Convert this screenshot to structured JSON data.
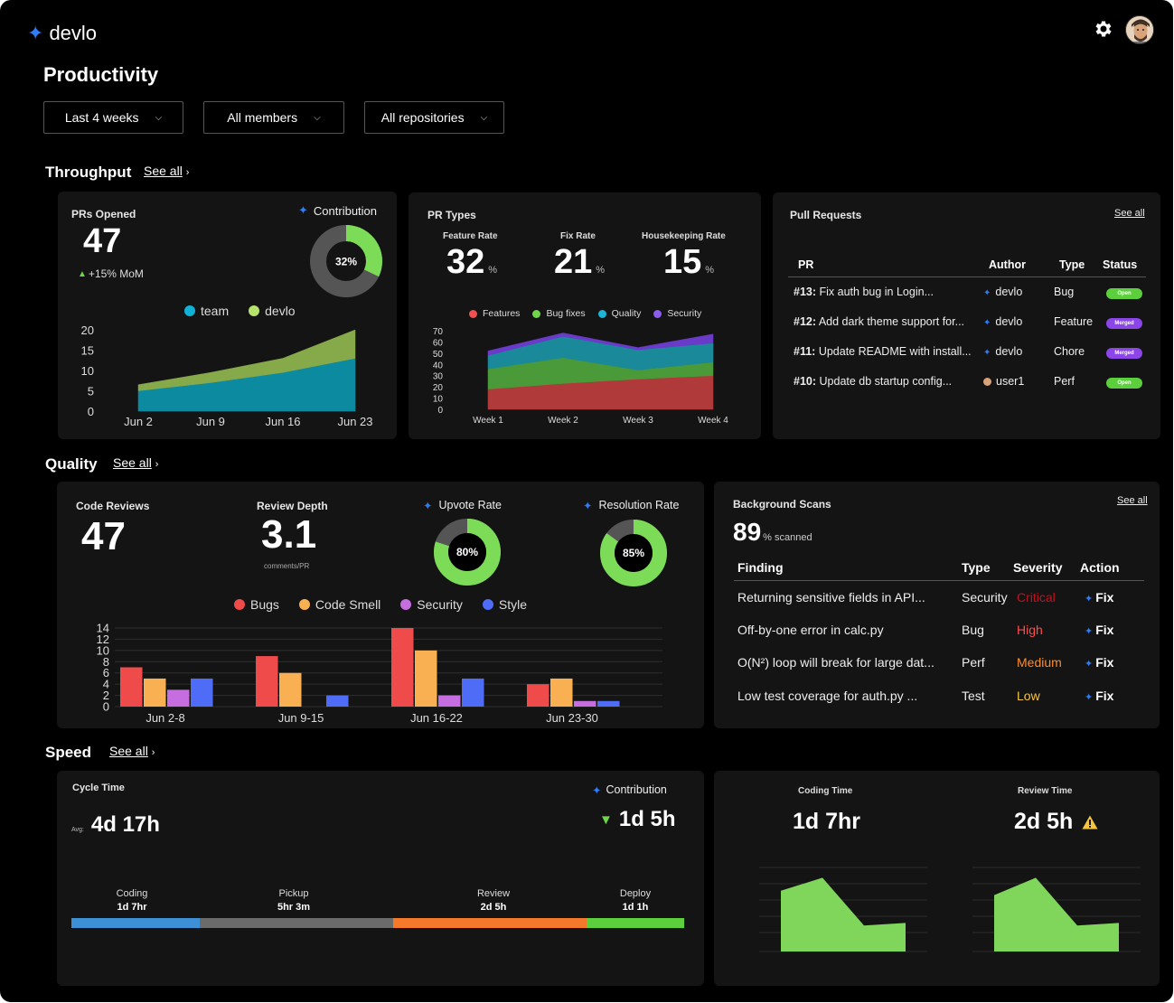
{
  "brand": {
    "name": "devlo",
    "colors": {
      "accent": "#2f7cf6",
      "bg": "#000000",
      "card": "#141414"
    }
  },
  "page_title": "Productivity",
  "filters": [
    {
      "label": "Last 4 weeks"
    },
    {
      "label": "All members"
    },
    {
      "label": "All repositories"
    }
  ],
  "sections": {
    "throughput": {
      "title": "Throughput",
      "see_all": "See all"
    },
    "quality": {
      "title": "Quality",
      "see_all": "See all"
    },
    "speed": {
      "title": "Speed",
      "see_all": "See all"
    }
  },
  "prs_opened": {
    "label": "PRs Opened",
    "value": "47",
    "trend": "+15% MoM",
    "contribution_label": "Contribution",
    "contribution_pct": "32%",
    "contribution_value": 32
  },
  "pr_types": {
    "label": "PR Types",
    "stats": [
      {
        "label": "Feature Rate",
        "value": "32",
        "unit": "%"
      },
      {
        "label": "Fix Rate",
        "value": "21",
        "unit": "%"
      },
      {
        "label": "Housekeeping Rate",
        "value": "15",
        "unit": "%"
      }
    ]
  },
  "pull_requests": {
    "label": "Pull Requests",
    "see_all": "See all",
    "columns": [
      "PR",
      "Author",
      "Type",
      "Status"
    ],
    "rows": [
      {
        "id": "#13:",
        "title": "Fix auth bug in Login...",
        "author": "devlo",
        "type": "Bug",
        "status": "Open",
        "status_color": "#5ccf3c"
      },
      {
        "id": "#12:",
        "title": "Add dark theme support for...",
        "author": "devlo",
        "type": "Feature",
        "status": "Merged",
        "status_color": "#8b45e8"
      },
      {
        "id": "#11:",
        "title": "Update README with install...",
        "author": "devlo",
        "type": "Chore",
        "status": "Merged",
        "status_color": "#8b45e8"
      },
      {
        "id": "#10:",
        "title": "Update db startup config...",
        "author": "user1",
        "type": "Perf",
        "status": "Open",
        "status_color": "#5ccf3c"
      }
    ]
  },
  "quality_metrics": {
    "code_reviews_label": "Code Reviews",
    "code_reviews_value": "47",
    "review_depth_label": "Review Depth",
    "review_depth_value": "3.1",
    "review_depth_unit": "comments/PR",
    "upvote_label": "Upvote Rate",
    "upvote_pct": "80%",
    "upvote_value": 80,
    "resolution_label": "Resolution Rate",
    "resolution_pct": "85%",
    "resolution_value": 85
  },
  "background_scans": {
    "label": "Background Scans",
    "see_all": "See all",
    "scanned_value": "89",
    "scanned_suffix": "% scanned",
    "columns": [
      "Finding",
      "Type",
      "Severity",
      "Action"
    ],
    "rows": [
      {
        "finding": "Returning sensitive fields in API...",
        "type": "Security",
        "severity": "Critical",
        "severity_color": "#c1121f",
        "action": "Fix"
      },
      {
        "finding": "Off-by-one error in calc.py",
        "type": "Bug",
        "severity": "High",
        "severity_color": "#ff4d4d",
        "action": "Fix"
      },
      {
        "finding": "O(N²) loop will break for large dat...",
        "type": "Perf",
        "severity": "Medium",
        "severity_color": "#ff8c2a",
        "action": "Fix"
      },
      {
        "finding": "Low test coverage for auth.py ...",
        "type": "Test",
        "severity": "Low",
        "severity_color": "#f5c542",
        "action": "Fix"
      }
    ]
  },
  "cycle_time": {
    "label": "Cycle Time",
    "avg_label": "Avg:",
    "avg_value": "4d 17h",
    "contribution_label": "Contribution",
    "contribution_value": "1d 5h",
    "stages": [
      {
        "name": "Coding",
        "value": "1d 7hr",
        "color": "#3d8fd6",
        "share": 21
      },
      {
        "name": "Pickup",
        "value": "5hr 3m",
        "color": "#6b6b6b",
        "share": 31.5
      },
      {
        "name": "Review",
        "value": "2d 5h",
        "color": "#f5792a",
        "share": 31.5
      },
      {
        "name": "Deploy",
        "value": "1d 1h",
        "color": "#5ccf3c",
        "share": 16
      }
    ]
  },
  "coding_time": {
    "label": "Coding Time",
    "value": "1d 7hr"
  },
  "review_time": {
    "label": "Review Time",
    "value": "2d 5h",
    "warning_icon": "warning-icon"
  },
  "chart_data": [
    {
      "id": "prs_opened",
      "type": "area",
      "stacked": true,
      "categories": [
        "Jun 2",
        "Jun 9",
        "Jun 16",
        "Jun 23"
      ],
      "series": [
        {
          "name": "team",
          "color": "#0b8aa0",
          "values": [
            5,
            7,
            9.5,
            13
          ]
        },
        {
          "name": "devlo",
          "color": "#86a94a",
          "values": [
            1.5,
            2.5,
            3.5,
            7
          ]
        }
      ],
      "yticks": [
        0,
        5,
        10,
        15,
        20
      ],
      "ylim": [
        0,
        20
      ],
      "legend_dot_colors": [
        "#0fb2d6",
        "#b6e36a"
      ]
    },
    {
      "id": "pr_types",
      "type": "area",
      "stacked": true,
      "categories": [
        "Week 1",
        "Week 2",
        "Week 3",
        "Week 4"
      ],
      "series": [
        {
          "name": "Features",
          "color": "#b03a3a",
          "legend_color": "#f05050",
          "values": [
            18,
            23,
            27,
            30
          ]
        },
        {
          "name": "Bug fixes",
          "color": "#4a9a3a",
          "legend_color": "#6fd64a",
          "values": [
            18,
            23,
            8,
            12
          ]
        },
        {
          "name": "Quality",
          "color": "#1a8a9a",
          "legend_color": "#1cb5d6",
          "values": [
            12,
            19,
            18,
            17
          ]
        },
        {
          "name": "Security",
          "color": "#6a3ac8",
          "legend_color": "#8a5cf0",
          "values": [
            4,
            3,
            2,
            8
          ]
        }
      ],
      "yticks": [
        0,
        10,
        20,
        30,
        40,
        50,
        60,
        70
      ],
      "ylim": [
        0,
        70
      ]
    },
    {
      "id": "code_reviews",
      "type": "bar",
      "categories": [
        "Jun 2-8",
        "Jun 9-15",
        "Jun 16-22",
        "Jun 23-30"
      ],
      "series": [
        {
          "name": "Bugs",
          "color": "#f04b4b",
          "values": [
            7,
            9,
            14,
            4
          ]
        },
        {
          "name": "Code Smell",
          "color": "#f9b052",
          "values": [
            5,
            6,
            10,
            5
          ]
        },
        {
          "name": "Security",
          "color": "#c66de0",
          "values": [
            3,
            0,
            2,
            1
          ]
        },
        {
          "name": "Style",
          "color": "#4f6cf6",
          "values": [
            5,
            2,
            5,
            1
          ]
        }
      ],
      "yticks": [
        0,
        2,
        4,
        6,
        8,
        10,
        12,
        14
      ],
      "ylim": [
        0,
        14
      ]
    },
    {
      "id": "coding_time",
      "type": "area",
      "values": [
        7,
        8.5,
        3,
        3.3
      ],
      "ylim": [
        0,
        10
      ],
      "color": "#7fd65a"
    },
    {
      "id": "review_time",
      "type": "area",
      "values": [
        6.5,
        8.5,
        3,
        3.3
      ],
      "ylim": [
        0,
        10
      ],
      "color": "#7fd65a"
    }
  ]
}
